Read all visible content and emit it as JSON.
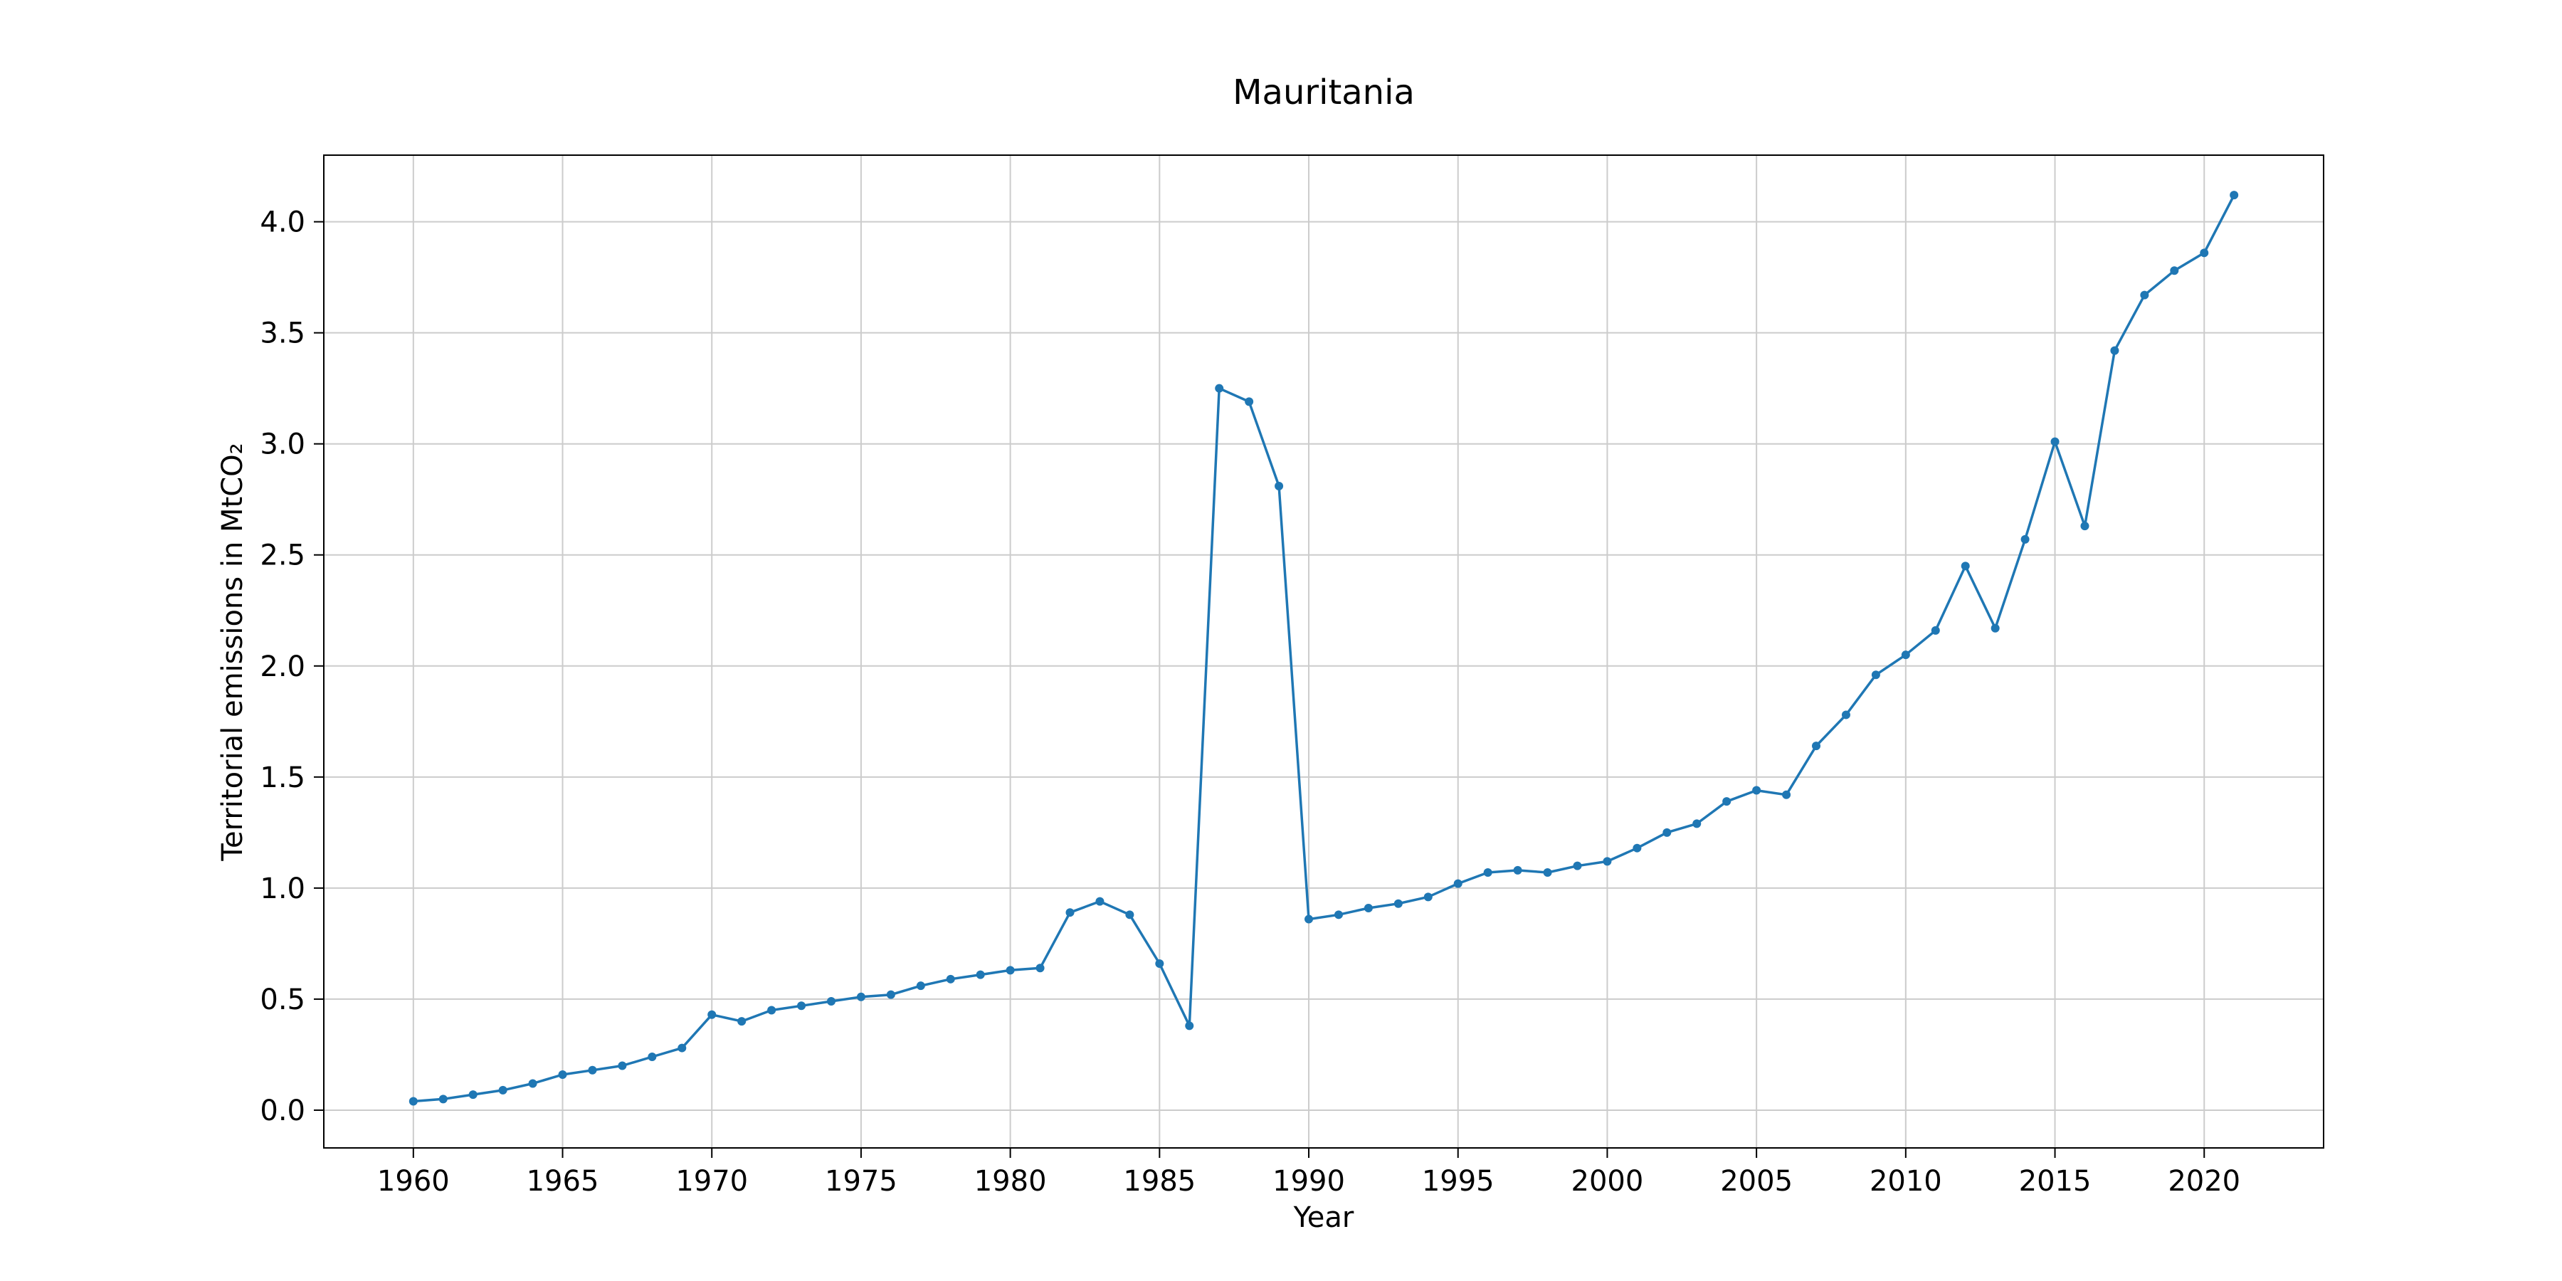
{
  "chart_data": {
    "type": "line",
    "title": "Mauritania",
    "xlabel": "Year",
    "ylabel": "Territorial emissions in MtCO₂",
    "xlim": [
      1957,
      2024
    ],
    "ylim": [
      -0.17,
      4.3
    ],
    "x_ticks": [
      1960,
      1965,
      1970,
      1975,
      1980,
      1985,
      1990,
      1995,
      2000,
      2005,
      2010,
      2015,
      2020
    ],
    "x_tick_labels": [
      "1960",
      "1965",
      "1970",
      "1975",
      "1980",
      "1985",
      "1990",
      "1995",
      "2000",
      "2005",
      "2010",
      "2015",
      "2020"
    ],
    "y_ticks": [
      0.0,
      0.5,
      1.0,
      1.5,
      2.0,
      2.5,
      3.0,
      3.5,
      4.0
    ],
    "y_tick_labels": [
      "0.0",
      "0.5",
      "1.0",
      "1.5",
      "2.0",
      "2.5",
      "3.0",
      "3.5",
      "4.0"
    ],
    "grid": true,
    "series_color": "#1f77b4",
    "x": [
      1960,
      1961,
      1962,
      1963,
      1964,
      1965,
      1966,
      1967,
      1968,
      1969,
      1970,
      1971,
      1972,
      1973,
      1974,
      1975,
      1976,
      1977,
      1978,
      1979,
      1980,
      1981,
      1982,
      1983,
      1984,
      1985,
      1986,
      1987,
      1988,
      1989,
      1990,
      1991,
      1992,
      1993,
      1994,
      1995,
      1996,
      1997,
      1998,
      1999,
      2000,
      2001,
      2002,
      2003,
      2004,
      2005,
      2006,
      2007,
      2008,
      2009,
      2010,
      2011,
      2012,
      2013,
      2014,
      2015,
      2016,
      2017,
      2018,
      2019,
      2020,
      2021
    ],
    "series": [
      {
        "values": [
          0.04,
          0.05,
          0.07,
          0.09,
          0.12,
          0.16,
          0.18,
          0.2,
          0.24,
          0.28,
          0.43,
          0.4,
          0.45,
          0.47,
          0.49,
          0.51,
          0.52,
          0.56,
          0.59,
          0.61,
          0.63,
          0.64,
          0.89,
          0.94,
          0.88,
          0.66,
          0.38,
          3.25,
          3.19,
          2.81,
          0.86,
          0.88,
          0.91,
          0.93,
          0.96,
          1.02,
          1.07,
          1.08,
          1.07,
          1.1,
          1.12,
          1.18,
          1.25,
          1.29,
          1.39,
          1.44,
          1.42,
          1.64,
          1.78,
          1.96,
          2.05,
          2.16,
          2.45,
          2.17,
          2.57,
          3.01,
          2.63,
          3.42,
          3.67,
          3.78,
          3.86,
          4.12
        ]
      }
    ]
  }
}
